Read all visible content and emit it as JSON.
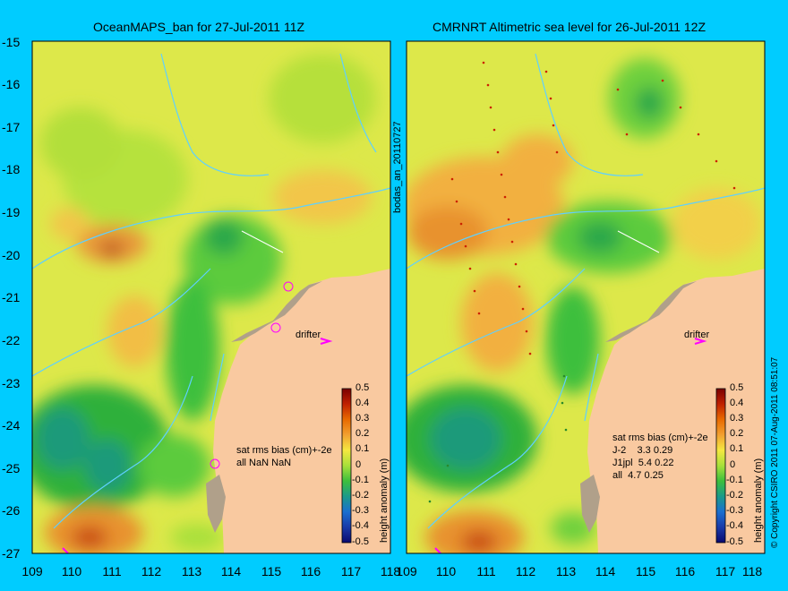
{
  "left_map": {
    "title": "OceanMAPS_ban for 27-Jul-2011 11Z",
    "stats_header": "sat rms bias (cm)+-2e",
    "stats_rows": [
      "all NaN NaN"
    ],
    "drifter_label": "drifter",
    "colorbar_label": "height anomaly (m)"
  },
  "right_map": {
    "title": "CMRNRT Altimetric sea level  for 26-Jul-2011 12Z",
    "stats_header": "sat rms bias (cm)+-2e",
    "stats_rows": [
      "J-2    3.3 0.29",
      "J1jpl  5.4 0.22",
      "all  4.7 0.25"
    ],
    "drifter_label": "drifter",
    "colorbar_label": "height anomaly (m)"
  },
  "side_labels": {
    "middle": "bodas_an_20110727",
    "right": "© Copyright CSIRO 2011   07-Aug-2011 08:51:07"
  },
  "axes": {
    "lat_ticks": [
      "-15",
      "-16",
      "-17",
      "-18",
      "-19",
      "-20",
      "-21",
      "-22",
      "-23",
      "-24",
      "-25",
      "-26",
      "-27"
    ],
    "lon_ticks": [
      "109",
      "110",
      "111",
      "112",
      "113",
      "114",
      "115",
      "116",
      "117",
      "118"
    ]
  },
  "colorbar": {
    "ticks": [
      "0.5",
      "0.4",
      "0.3",
      "0.2",
      "0.1",
      "0",
      "-0.1",
      "-0.2",
      "-0.3",
      "-0.4",
      "-0.5"
    ],
    "range": [
      -0.5,
      0.5
    ]
  },
  "colors": {
    "background": "#00ccff",
    "land": "#f9c9a0",
    "drifter_marker": "#ff00ff"
  }
}
